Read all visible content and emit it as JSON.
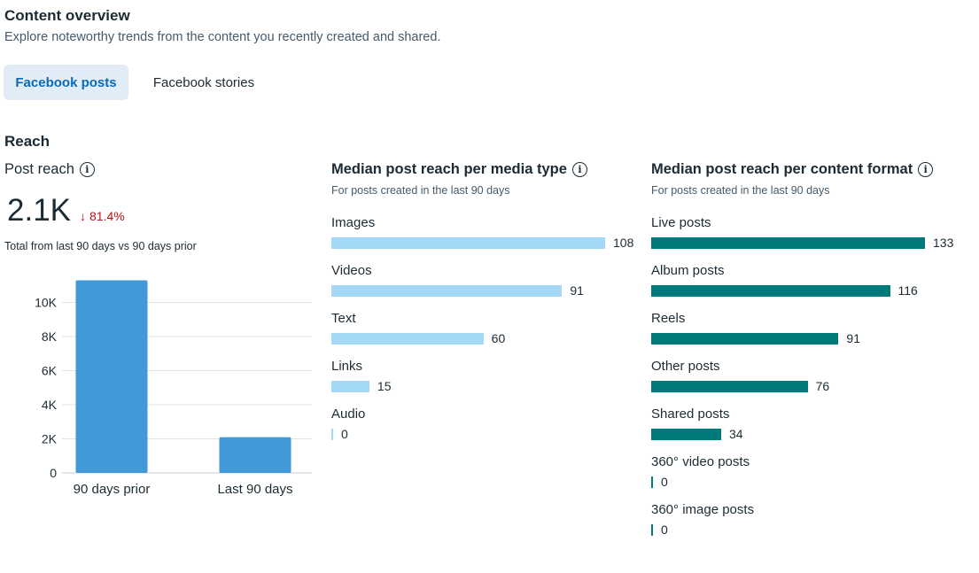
{
  "header": {
    "title": "Content overview",
    "subtitle": "Explore noteworthy trends from the content you recently created and shared."
  },
  "tabs": [
    {
      "label": "Facebook posts",
      "active": true
    },
    {
      "label": "Facebook stories",
      "active": false
    }
  ],
  "section": {
    "title": "Reach"
  },
  "post_reach": {
    "title": "Post reach",
    "value": "2.1K",
    "delta_arrow": "↓",
    "delta": "81.4%",
    "caption": "Total from last 90 days vs 90 days prior"
  },
  "media_type": {
    "title": "Median post reach per media type",
    "subtitle": "For posts created in the last 90 days",
    "color": "#a3d8f6",
    "max": 108,
    "items": [
      {
        "label": "Images",
        "value": 108
      },
      {
        "label": "Videos",
        "value": 91
      },
      {
        "label": "Text",
        "value": 60
      },
      {
        "label": "Links",
        "value": 15
      },
      {
        "label": "Audio",
        "value": 0
      }
    ]
  },
  "content_format": {
    "title": "Median post reach per content format",
    "subtitle": "For posts created in the last 90 days",
    "color": "#00797a",
    "max": 133,
    "items": [
      {
        "label": "Live posts",
        "value": 133
      },
      {
        "label": "Album posts",
        "value": 116
      },
      {
        "label": "Reels",
        "value": 91
      },
      {
        "label": "Other posts",
        "value": 76
      },
      {
        "label": "Shared posts",
        "value": 34
      },
      {
        "label": "360° video posts",
        "value": 0
      },
      {
        "label": "360° image posts",
        "value": 0
      }
    ]
  },
  "chart_data": {
    "type": "bar",
    "title": "Post reach",
    "categories": [
      "90 days prior",
      "Last 90 days"
    ],
    "values": [
      11300,
      2100
    ],
    "ylim": [
      0,
      12000
    ],
    "yticks": [
      0,
      2000,
      4000,
      6000,
      8000,
      10000
    ],
    "ytick_labels": [
      "0",
      "2K",
      "4K",
      "6K",
      "8K",
      "10K"
    ],
    "color": "#4299d8",
    "xlabel": "",
    "ylabel": ""
  }
}
